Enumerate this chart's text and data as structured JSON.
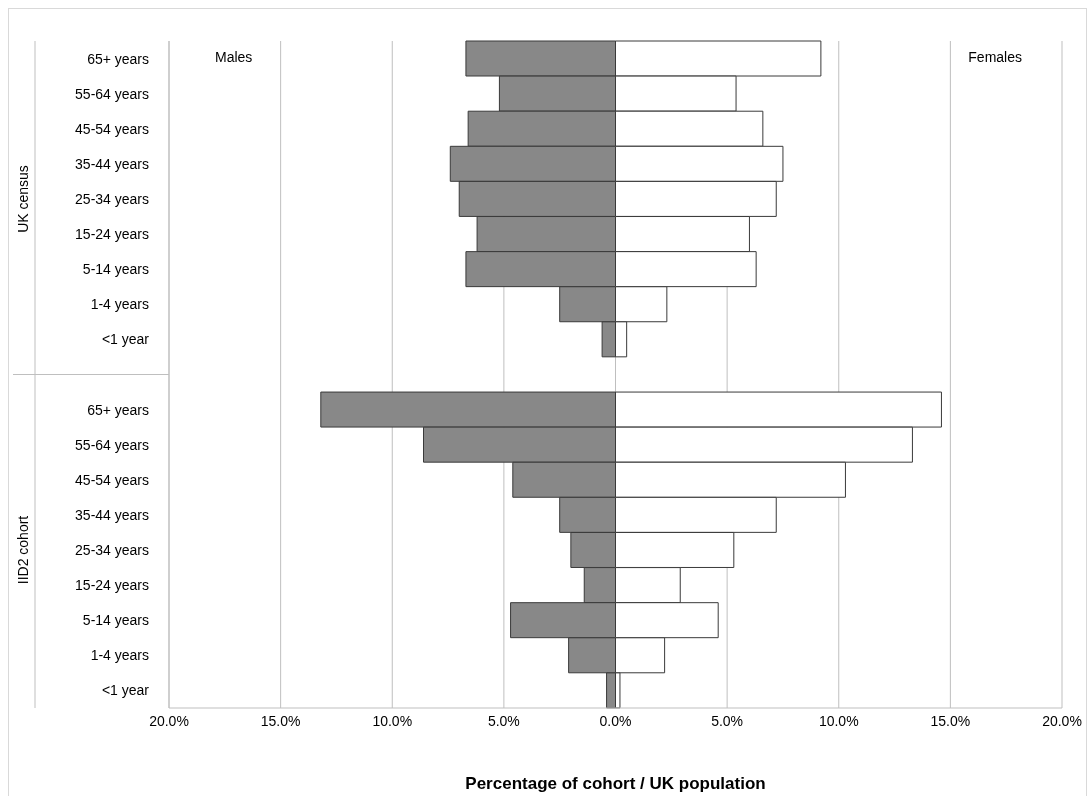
{
  "chart_data": {
    "type": "bar",
    "orientation": "horizontal",
    "stacked": true,
    "xlabel": "Percentage of cohort / UK population",
    "categories": [
      "65+ years",
      "55-64 years",
      "45-54 years",
      "35-44 years",
      "25-34 years",
      "15-24 years",
      "5-14 years",
      "1-4 years",
      "<1 year",
      null,
      "65+ years",
      "55-64 years",
      "45-54 years",
      "35-44 years",
      "25-34 years",
      "15-24 years",
      "5-14 years",
      "1-4 years",
      "<1 year"
    ],
    "series": [
      {
        "color": "#888888",
        "values": [
          -6.7,
          -5.2,
          -6.6,
          -7.4,
          -7.0,
          -6.2,
          -6.7,
          -2.5,
          -0.6,
          null,
          -13.2,
          -8.6,
          -4.6,
          -2.5,
          -2.0,
          -1.4,
          -4.7,
          -2.1,
          -0.4
        ]
      },
      {
        "color": "#ffffff",
        "values": [
          9.2,
          5.4,
          6.6,
          7.5,
          7.2,
          6.0,
          6.3,
          2.3,
          0.5,
          null,
          14.6,
          13.3,
          10.3,
          7.2,
          5.3,
          2.9,
          4.6,
          2.2,
          0.2
        ]
      }
    ],
    "xlim": [
      -20,
      20
    ],
    "xticks": [
      {
        "value": -20,
        "label": "20.0%"
      },
      {
        "value": -15,
        "label": "15.0%"
      },
      {
        "value": -10,
        "label": "10.0%"
      },
      {
        "value": -5,
        "label": "5.0%"
      },
      {
        "value": 0,
        "label": "0.0%"
      },
      {
        "value": 5,
        "label": "5.0%"
      },
      {
        "value": 10,
        "label": "10.0%"
      },
      {
        "value": 15,
        "label": "15.0%"
      },
      {
        "value": 20,
        "label": "20.0%"
      }
    ],
    "annotations": [
      "UK census",
      "IID2 cohort",
      "Males",
      "Females"
    ],
    "grid": "x",
    "legend": false
  }
}
